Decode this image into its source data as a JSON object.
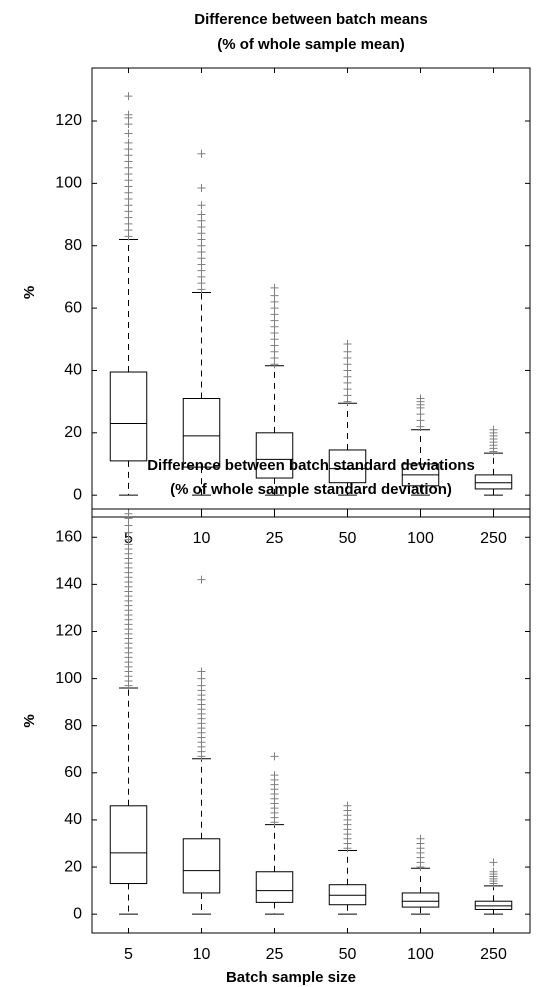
{
  "chart_data": [
    {
      "type": "box",
      "title": [
        "Difference between batch means",
        "(% of whole sample mean)"
      ],
      "ylabel": "%",
      "categories": [
        "5",
        "10",
        "25",
        "50",
        "100",
        "250"
      ],
      "ylim": [
        -7,
        137
      ],
      "yticks": [
        0,
        20,
        40,
        60,
        80,
        100,
        120
      ],
      "color": "#000000",
      "outlier_color": "#808080",
      "boxes": [
        {
          "whisker_low": 0,
          "q1": 11,
          "median": 23,
          "q3": 39.5,
          "whisker_high": 82,
          "outliers": [
            83,
            85,
            87,
            89,
            91,
            93,
            95,
            97,
            99,
            101,
            103,
            105,
            107,
            109,
            111,
            113,
            116,
            119,
            121,
            122,
            128
          ]
        },
        {
          "whisker_low": 0,
          "q1": 9,
          "median": 19,
          "q3": 31,
          "whisker_high": 65,
          "outliers": [
            66,
            68,
            70,
            72,
            74,
            76,
            78,
            80,
            82,
            84,
            86,
            88,
            90,
            93,
            98.5,
            109.5
          ]
        },
        {
          "whisker_low": 0,
          "q1": 5.5,
          "median": 11.5,
          "q3": 20,
          "whisker_high": 41.5,
          "outliers": [
            42,
            44,
            46,
            48,
            50,
            52,
            54,
            56,
            58,
            60,
            62,
            64,
            66.5
          ]
        },
        {
          "whisker_low": 0,
          "q1": 4,
          "median": 8.5,
          "q3": 14.5,
          "whisker_high": 29.5,
          "outliers": [
            30,
            32,
            34,
            36,
            38,
            40,
            42,
            44,
            46,
            48.5
          ]
        },
        {
          "whisker_low": 0,
          "q1": 3,
          "median": 6.5,
          "q3": 10,
          "whisker_high": 21,
          "outliers": [
            22,
            24,
            26,
            28,
            29,
            30,
            31
          ]
        },
        {
          "whisker_low": 0,
          "q1": 2,
          "median": 4,
          "q3": 6.5,
          "whisker_high": 13.5,
          "outliers": [
            14,
            15,
            16,
            17,
            18,
            19,
            20,
            21
          ]
        }
      ]
    },
    {
      "type": "box",
      "title": [
        "Difference between batch standard deviations",
        "(% of whole sample standard deviation)"
      ],
      "ylabel": "%",
      "xlabel": "Batch sample size",
      "categories": [
        "5",
        "10",
        "25",
        "50",
        "100",
        "250"
      ],
      "ylim": [
        -8,
        172
      ],
      "yticks": [
        0,
        20,
        40,
        60,
        80,
        100,
        120,
        140,
        160
      ],
      "color": "#000000",
      "outlier_color": "#808080",
      "boxes": [
        {
          "whisker_low": 0,
          "q1": 13,
          "median": 26,
          "q3": 46,
          "whisker_high": 96,
          "outliers": [
            97,
            99,
            101,
            103,
            105,
            107,
            109,
            111,
            113,
            115,
            117,
            119,
            121,
            123,
            125,
            127,
            129,
            131,
            133,
            135,
            137,
            139,
            141,
            143,
            145,
            147,
            149,
            151,
            153,
            155,
            157,
            159,
            162,
            165,
            168,
            170
          ]
        },
        {
          "whisker_low": 0,
          "q1": 9,
          "median": 18.5,
          "q3": 32,
          "whisker_high": 66,
          "outliers": [
            67,
            69,
            71,
            73,
            75,
            77,
            79,
            81,
            83,
            85,
            87,
            89,
            91,
            93,
            95,
            97,
            100,
            103,
            142
          ]
        },
        {
          "whisker_low": 0,
          "q1": 5,
          "median": 10,
          "q3": 18,
          "whisker_high": 38,
          "outliers": [
            39,
            41,
            43,
            45,
            47,
            49,
            51,
            53,
            55,
            57,
            59,
            67
          ]
        },
        {
          "whisker_low": 0,
          "q1": 4,
          "median": 8,
          "q3": 12.5,
          "whisker_high": 27,
          "outliers": [
            28,
            30,
            32,
            34,
            36,
            38,
            40,
            42,
            44,
            46
          ]
        },
        {
          "whisker_low": 0,
          "q1": 3,
          "median": 5.5,
          "q3": 9,
          "whisker_high": 19.5,
          "outliers": [
            20,
            22,
            24,
            26,
            28,
            30,
            32
          ]
        },
        {
          "whisker_low": 0,
          "q1": 2,
          "median": 3.5,
          "q3": 5.5,
          "whisker_high": 12,
          "outliers": [
            13,
            14,
            15,
            16,
            17,
            18,
            22
          ]
        }
      ]
    }
  ]
}
